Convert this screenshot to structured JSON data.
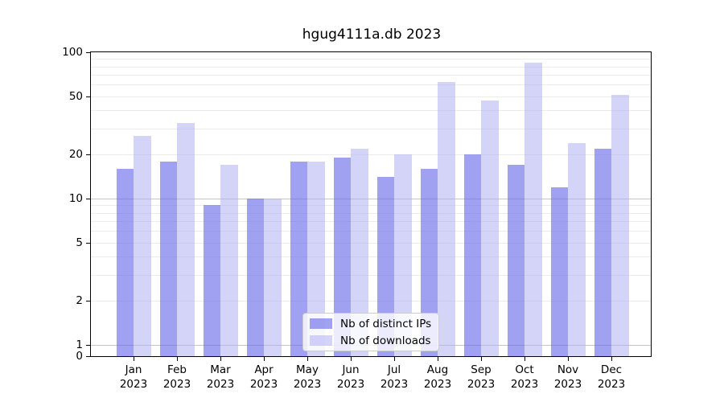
{
  "title": "hgug4111a.db 2023",
  "colors": {
    "bar_distinct_ips": "rgba(103,103,233,0.62)",
    "bar_downloads": "rgba(173,173,242,0.52)",
    "gridline_minor": "#ececec",
    "gridline_major": "#c6c6c6",
    "axis": "#000000",
    "legend_border": "#cccccc"
  },
  "chart_data": {
    "type": "bar",
    "title": "hgug4111a.db 2023",
    "categories": [
      "Jan",
      "Feb",
      "Mar",
      "Apr",
      "May",
      "Jun",
      "Jul",
      "Aug",
      "Sep",
      "Oct",
      "Nov",
      "Dec"
    ],
    "x_tick_second_line": "2023",
    "series": [
      {
        "name": "Nb of distinct IPs",
        "color": "rgba(103,103,233,0.62)",
        "values": [
          16,
          18,
          9,
          10,
          18,
          19,
          14,
          16,
          20,
          17,
          12,
          22
        ]
      },
      {
        "name": "Nb of downloads",
        "color": "rgba(173,173,242,0.52)",
        "values": [
          27,
          33,
          17,
          10,
          18,
          22,
          20,
          63,
          47,
          85,
          24,
          51
        ]
      }
    ],
    "y_scale": "log",
    "y_tick_values": [
      100,
      50,
      20,
      10,
      5,
      2,
      1,
      0
    ],
    "y_gridlines_minor": [
      2,
      3,
      4,
      5,
      6,
      7,
      8,
      9,
      20,
      30,
      40,
      50,
      60,
      70,
      80,
      90
    ],
    "y_gridlines_major": [
      1,
      10
    ],
    "ylim": [
      0,
      100
    ],
    "grid": true,
    "legend_position": "bottom-center"
  }
}
